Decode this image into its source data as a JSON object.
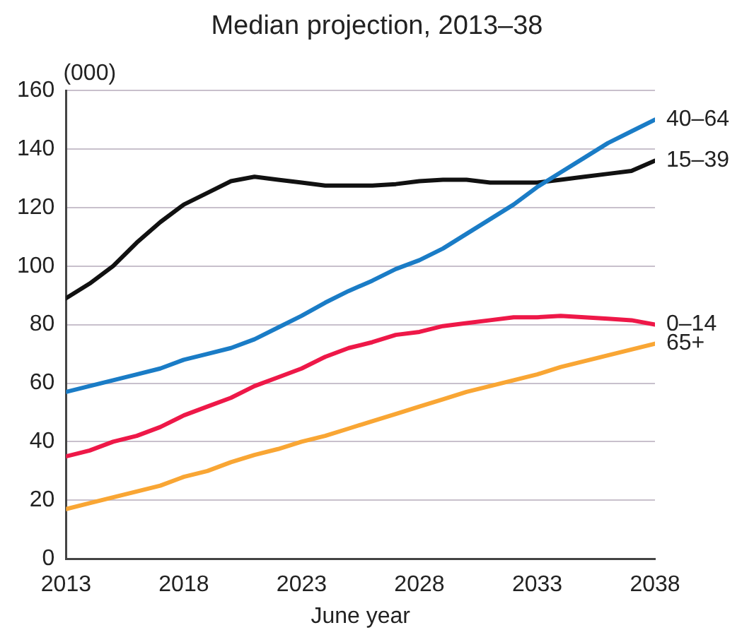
{
  "chart_data": {
    "type": "line",
    "title": "Median projection, 2013–38",
    "xlabel": "June year",
    "ylabel": "(000)",
    "x": [
      2013,
      2014,
      2015,
      2016,
      2017,
      2018,
      2019,
      2020,
      2021,
      2022,
      2023,
      2024,
      2025,
      2026,
      2027,
      2028,
      2029,
      2030,
      2031,
      2032,
      2033,
      2034,
      2035,
      2036,
      2037,
      2038
    ],
    "xlim": [
      2013,
      2038
    ],
    "xticks": [
      2013,
      2018,
      2023,
      2028,
      2033,
      2038
    ],
    "ylim": [
      0,
      160
    ],
    "yticks": [
      0,
      20,
      40,
      60,
      80,
      100,
      120,
      140,
      160
    ],
    "grid": "y",
    "legend": false,
    "marker": "none",
    "line_style": "solid",
    "series": [
      {
        "name": "40–64",
        "color": "#1a7cc6",
        "values": [
          57,
          59,
          61,
          63,
          65,
          68,
          70,
          72,
          75,
          79,
          83,
          87.5,
          91.5,
          95,
          99,
          102,
          106,
          111,
          116,
          121,
          127,
          132,
          137,
          142,
          146,
          150
        ]
      },
      {
        "name": "15–39",
        "color": "#111111",
        "values": [
          89,
          94,
          100,
          108,
          115,
          121,
          125,
          129,
          130.5,
          129.5,
          128.5,
          127.5,
          127.5,
          127.5,
          128,
          129,
          129.5,
          129.5,
          128.5,
          128.5,
          128.5,
          129.5,
          130.5,
          131.5,
          132.5,
          136
        ]
      },
      {
        "name": "0–14",
        "color": "#ee1848",
        "values": [
          35,
          37,
          40,
          42,
          45,
          49,
          52,
          55,
          59,
          62,
          65,
          69,
          72,
          74,
          76.5,
          77.5,
          79.5,
          80.5,
          81.5,
          82.5,
          82.5,
          83,
          82.5,
          82,
          81.5,
          80
        ]
      },
      {
        "name": "65+",
        "color": "#f9a634",
        "values": [
          17,
          19,
          21,
          23,
          25,
          28,
          30,
          33,
          35.5,
          37.5,
          40,
          42,
          44.5,
          47,
          49.5,
          52,
          54.5,
          57,
          59,
          61,
          63,
          65.5,
          67.5,
          69.5,
          71.5,
          73.5
        ]
      }
    ]
  }
}
